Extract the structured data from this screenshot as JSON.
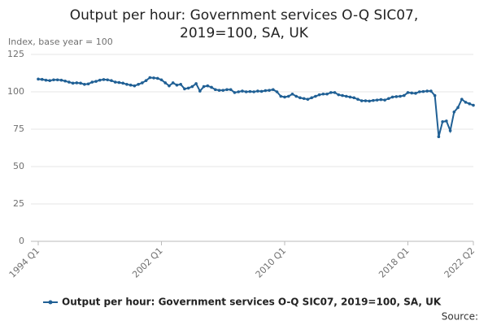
{
  "chart_data": {
    "type": "line",
    "title": "Output per hour: Government services O-Q SIC07, 2019=100, SA, UK",
    "y_label": "Index, base year = 100",
    "source": "Source:",
    "categories": [
      "1994 Q1",
      null,
      null,
      null,
      null,
      null,
      null,
      null,
      null,
      null,
      null,
      null,
      null,
      null,
      null,
      null,
      null,
      null,
      null,
      null,
      null,
      null,
      null,
      null,
      null,
      null,
      null,
      null,
      null,
      null,
      null,
      null,
      "2002 Q1",
      null,
      null,
      null,
      null,
      null,
      null,
      null,
      null,
      null,
      null,
      null,
      null,
      null,
      null,
      null,
      null,
      null,
      null,
      null,
      null,
      null,
      null,
      null,
      null,
      null,
      null,
      null,
      null,
      null,
      null,
      null,
      "2010 Q1",
      null,
      null,
      null,
      null,
      null,
      null,
      null,
      null,
      null,
      null,
      null,
      null,
      null,
      null,
      null,
      null,
      null,
      null,
      null,
      null,
      null,
      null,
      null,
      null,
      null,
      null,
      null,
      null,
      null,
      null,
      null,
      "2018 Q1",
      null,
      null,
      null,
      null,
      null,
      null,
      null,
      null,
      null,
      null,
      null,
      null,
      null,
      null,
      null,
      null,
      "2022 Q2"
    ],
    "series": [
      {
        "name": "Output per hour: Government services O-Q SIC07, 2019=100, SA, UK",
        "color": "#206095",
        "values": [
          108.5,
          108.3,
          107.8,
          107.5,
          108,
          108,
          107.8,
          107.2,
          106.5,
          105.8,
          106,
          105.8,
          105,
          105.3,
          106.5,
          107,
          107.8,
          108.2,
          108,
          107.5,
          106.5,
          106.2,
          105.8,
          105,
          104.5,
          104,
          105,
          106,
          107.5,
          109.5,
          109.3,
          109,
          108,
          106,
          104,
          106,
          104.5,
          105,
          102,
          102.5,
          103.5,
          105.5,
          100.5,
          103.5,
          104,
          103,
          101.5,
          101,
          101,
          101.5,
          101.5,
          99.5,
          100,
          100.5,
          100,
          100.2,
          100,
          100.5,
          100.3,
          100.8,
          101,
          101.5,
          100,
          97,
          96.5,
          97,
          98.5,
          97,
          96,
          95.5,
          95,
          96,
          97,
          98,
          98.5,
          98.5,
          99.5,
          99.5,
          98,
          97.5,
          97,
          96.5,
          96,
          95,
          94,
          94,
          93.8,
          94.2,
          94.5,
          94.8,
          94.5,
          95.5,
          96.5,
          96.8,
          97,
          97.5,
          99.5,
          99.2,
          99,
          100,
          100.2,
          100.5,
          100.5,
          97.5,
          70,
          80,
          80.5,
          74,
          86.5,
          89.5,
          95,
          93,
          92,
          91
        ]
      }
    ],
    "ylim": [
      0,
      125
    ],
    "yticks": [
      0,
      25,
      50,
      75,
      100,
      125
    ],
    "grid": true
  }
}
